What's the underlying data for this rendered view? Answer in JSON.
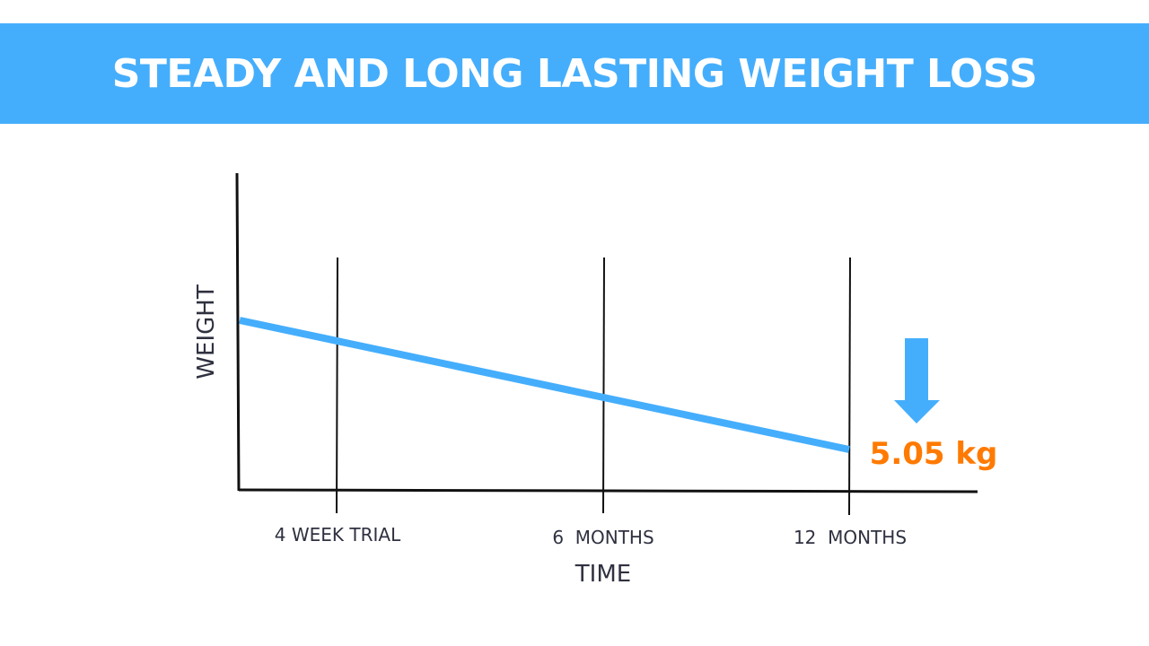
{
  "header": {
    "title": "STEADY AND LONG LASTING WEIGHT LOSS"
  },
  "colors": {
    "banner": "#45aefc",
    "line": "#45aefc",
    "callout": "#ff7a00",
    "axis": "#111111",
    "text": "#2f3140"
  },
  "chart_data": {
    "type": "line",
    "xlabel": "TIME",
    "ylabel": "WEIGHT",
    "categories": [
      "4 WEEK TRIAL",
      "6  MONTHS",
      "12  MONTHS"
    ],
    "grid": "vertical lines at each time marker",
    "annotation": {
      "text": "5.05 kg",
      "icon": "down-arrow-icon"
    }
  }
}
